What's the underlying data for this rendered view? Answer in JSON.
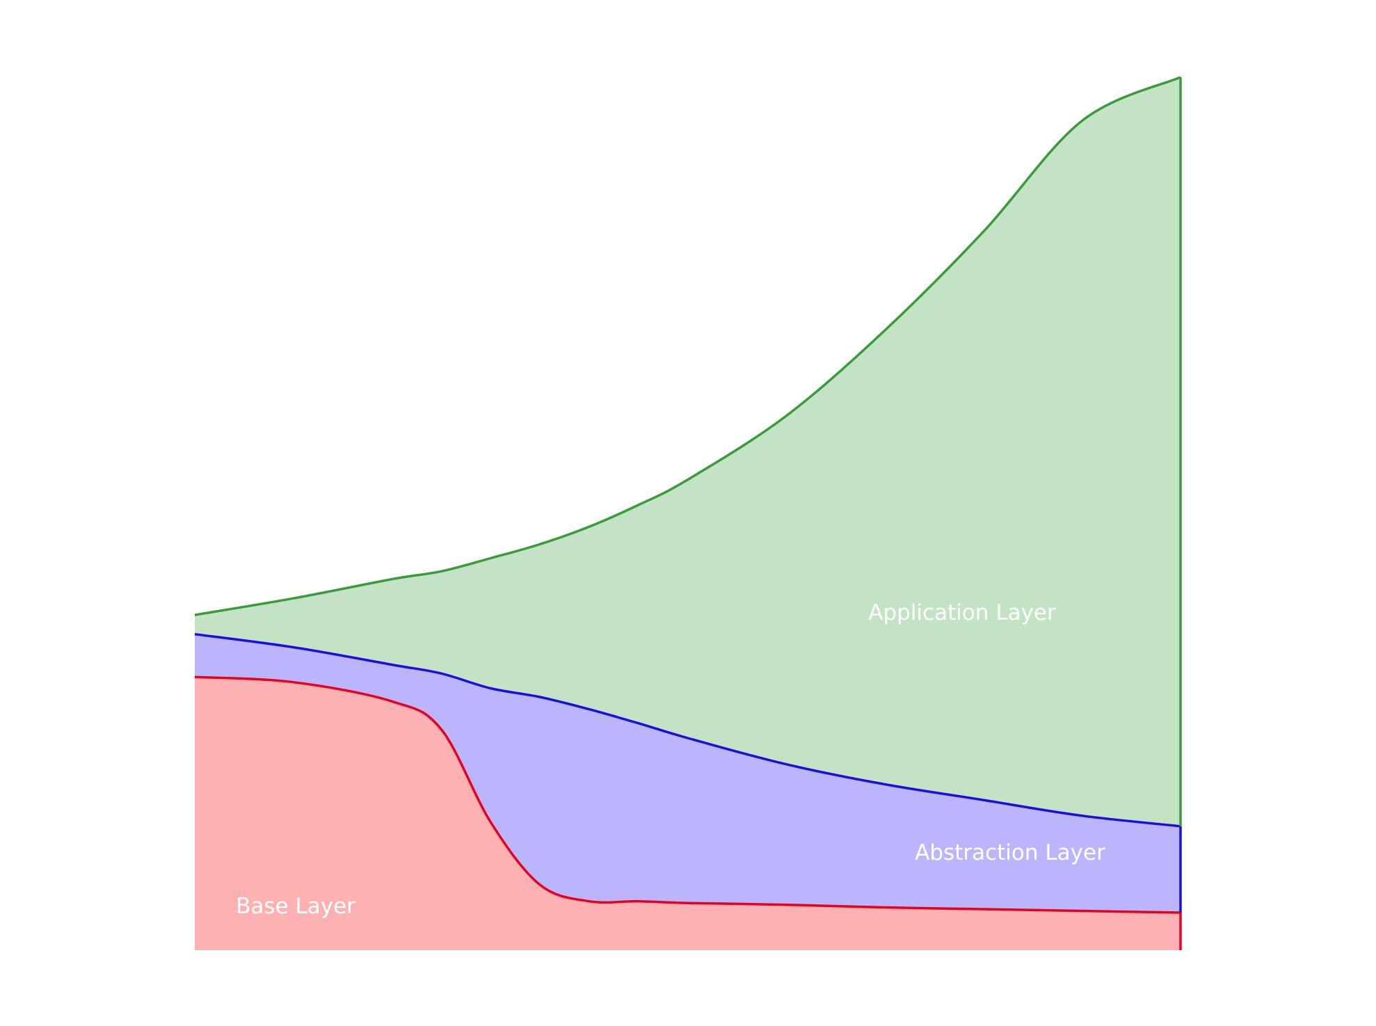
{
  "chart_data": {
    "type": "area",
    "title": "",
    "xlabel": "",
    "ylabel": "",
    "axes_visible": false,
    "grid": false,
    "legend": "none",
    "xlim": [
      0,
      1
    ],
    "ylim": [
      0,
      1
    ],
    "x": [
      0,
      0.1,
      0.2,
      0.25,
      0.3,
      0.35,
      0.4,
      0.45,
      0.5,
      0.6,
      0.7,
      0.8,
      0.9,
      1.0
    ],
    "series": [
      {
        "name": "Base Layer",
        "color": "#e8001c",
        "fill": "#fdb1b2",
        "values": [
          0.313,
          0.307,
          0.285,
          0.253,
          0.147,
          0.075,
          0.056,
          0.056,
          0.054,
          0.052,
          0.049,
          0.047,
          0.045,
          0.043
        ]
      },
      {
        "name": "Abstraction Layer",
        "color": "#1a0fe0",
        "fill": "#bab5fc",
        "values": [
          0.362,
          0.347,
          0.327,
          0.317,
          0.3,
          0.29,
          0.276,
          0.26,
          0.243,
          0.213,
          0.19,
          0.172,
          0.154,
          0.142
        ]
      },
      {
        "name": "Application Layer",
        "color": "#3a9b3a",
        "fill": "#c4e3c4",
        "values": [
          0.384,
          0.403,
          0.425,
          0.434,
          0.449,
          0.465,
          0.485,
          0.51,
          0.539,
          0.612,
          0.71,
          0.823,
          0.95,
          1.0
        ]
      }
    ]
  },
  "labels": {
    "base": "Base Layer",
    "abstraction": "Abstraction Layer",
    "application": "Application Layer"
  }
}
